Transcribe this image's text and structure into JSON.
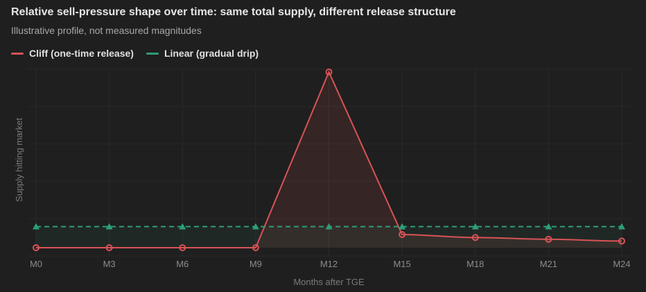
{
  "header": {
    "title": "Relative sell-pressure shape over time: same total supply, different release structure",
    "subtitle": "Illustrative profile, not measured magnitudes"
  },
  "legend": {
    "items": [
      {
        "label": "Cliff (one-time release)",
        "color": "#d95356"
      },
      {
        "label": "Linear (gradual drip)",
        "color": "#2e9e77"
      }
    ]
  },
  "chart_data": {
    "type": "line",
    "title": "Relative sell-pressure shape over time: same total supply, different release structure",
    "subtitle": "Illustrative profile, not measured magnitudes",
    "xlabel": "Months after TGE",
    "ylabel": "Supply hitting market",
    "categories": [
      "M0",
      "M3",
      "M6",
      "M9",
      "M12",
      "M15",
      "M18",
      "M21",
      "M24"
    ],
    "ylim": [
      0,
      100
    ],
    "grid": true,
    "legend_position": "top-left",
    "series": [
      {
        "name": "Cliff (one-time release)",
        "color": "#d95356",
        "marker": "circle",
        "line_style": "solid",
        "fill": true,
        "values": [
          0,
          0,
          0,
          0,
          100,
          7.5,
          5.8,
          4.8,
          3.8
        ]
      },
      {
        "name": "Linear (gradual drip)",
        "color": "#2e9e77",
        "marker": "triangle",
        "line_style": "dashed",
        "fill": true,
        "values": [
          12,
          12,
          12,
          12,
          12,
          12,
          12,
          12,
          12
        ]
      }
    ]
  }
}
